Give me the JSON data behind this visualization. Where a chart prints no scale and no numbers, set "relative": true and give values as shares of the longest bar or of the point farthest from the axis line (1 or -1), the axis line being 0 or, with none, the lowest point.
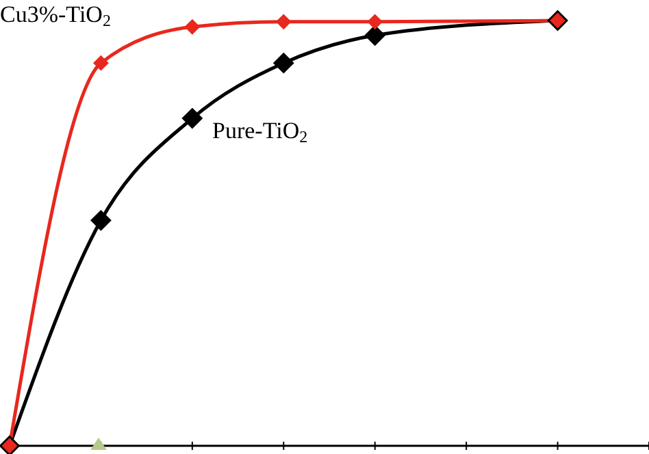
{
  "chart_data": {
    "type": "line",
    "relative": true,
    "categories": [
      null,
      null,
      null,
      null,
      null,
      null,
      null,
      null
    ],
    "marker": "diamond",
    "legend": false,
    "grid": false,
    "series": [
      {
        "name": "Pure-TiO$_{2}$",
        "color": "#000000",
        "values": [
          0,
          0.53,
          0.77,
          0.9,
          0.965,
          null,
          1,
          null
        ]
      },
      {
        "name": "Cu3%-TiO$_{2}$",
        "color": "#e8281e",
        "values": [
          0,
          0.9,
          0.985,
          0.997,
          0.997,
          null,
          1,
          null
        ]
      }
    ]
  }
}
